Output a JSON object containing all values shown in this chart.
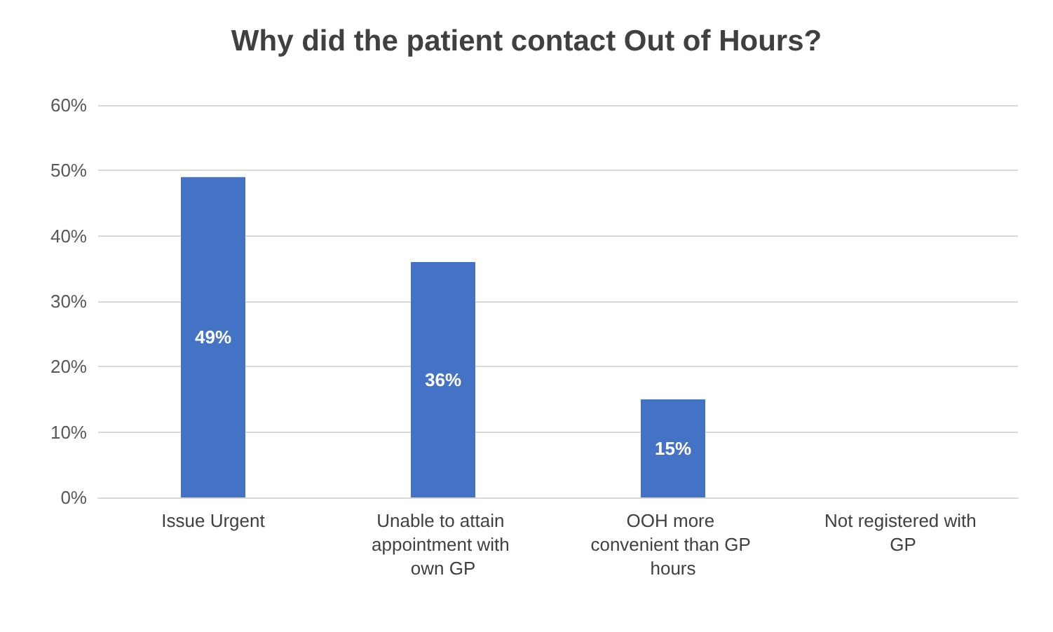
{
  "chart_data": {
    "type": "bar",
    "title": "Why did the patient contact Out of Hours?",
    "categories": [
      "Issue Urgent",
      "Unable to attain appointment with own GP",
      "OOH more convenient than GP hours",
      "Not registered with GP"
    ],
    "values": [
      49,
      36,
      15,
      0
    ],
    "color": "#4472c4",
    "value_labels": [
      "49%",
      "36%",
      "15%",
      null
    ],
    "ylim": [
      0,
      60
    ],
    "yticks": [
      {
        "value": 0,
        "label": "0%"
      },
      {
        "value": 10,
        "label": "10%"
      },
      {
        "value": 20,
        "label": "20%"
      },
      {
        "value": 30,
        "label": "30%"
      },
      {
        "value": 40,
        "label": "40%"
      },
      {
        "value": 50,
        "label": "50%"
      },
      {
        "value": 60,
        "label": "60%"
      }
    ],
    "grid": "y"
  }
}
